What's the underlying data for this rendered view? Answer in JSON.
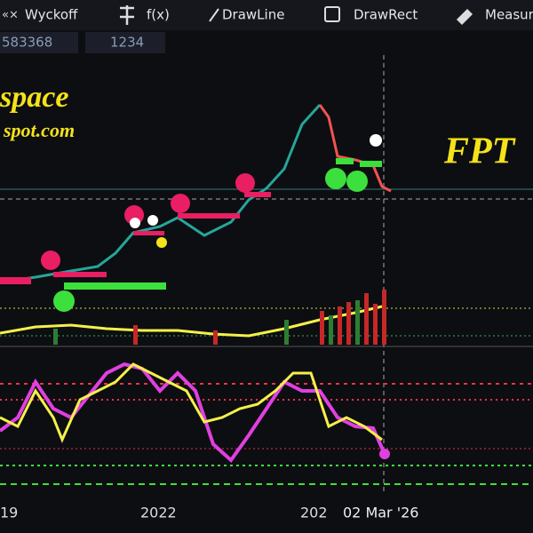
{
  "toolbar": {
    "items": [
      "Wyckoff",
      "f(x)",
      "DrawLine",
      "DrawRect",
      "Measure"
    ]
  },
  "fields": [
    "583368",
    "1234"
  ],
  "watermark": {
    "line1": "space",
    "line2": "spot.com"
  },
  "symbol": "FPT",
  "x_labels": [
    "19",
    "2022",
    "202",
    "02 Mar '26"
  ]
}
